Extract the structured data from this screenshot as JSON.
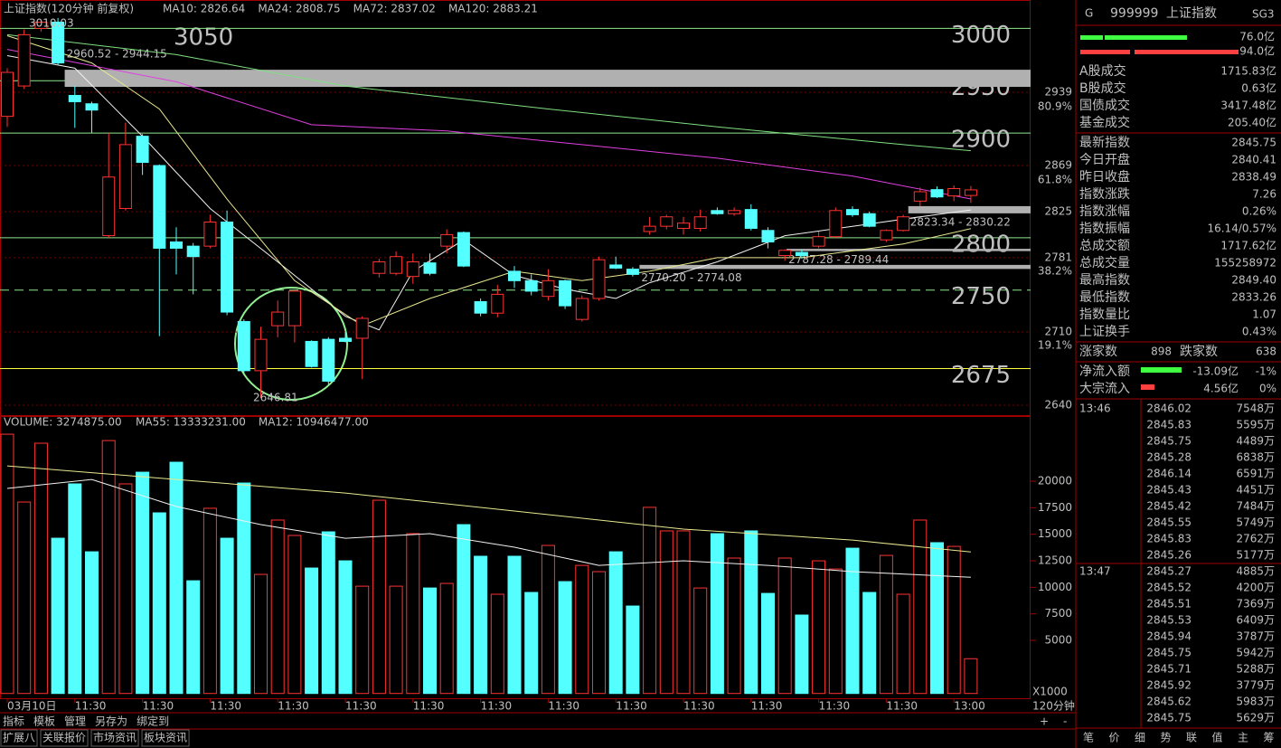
{
  "price_chart": {
    "title": "上证指数(120分钟 前复权)",
    "ylim": [
      2631.4,
      3011.6
    ],
    "yticks": [
      2640,
      2710,
      2781,
      2825,
      2869,
      2939
    ],
    "fib_labels": [
      {
        "value": 2925,
        "label": "80.9%"
      },
      {
        "value": 2855,
        "label": "61.8%"
      },
      {
        "value": 2768,
        "label": "38.2%"
      },
      {
        "value": 2697,
        "label": "19.1%"
      }
    ],
    "up_color": "#ff3232",
    "down_color": "#54ffff",
    "candles": [
      [
        2916,
        2962,
        2906,
        2958
      ],
      [
        2945,
        2999,
        2942,
        2994
      ],
      [
        3000,
        3008,
        2997,
        3006
      ],
      [
        3006,
        3010,
        2965,
        2967
      ],
      [
        2936,
        2945,
        2905,
        2930
      ],
      [
        2928,
        2930,
        2900,
        2922
      ],
      [
        2802,
        2900,
        2800,
        2858
      ],
      [
        2828,
        2910,
        2826,
        2889
      ],
      [
        2897,
        2899,
        2860,
        2872
      ],
      [
        2869,
        2870,
        2706,
        2790
      ],
      [
        2796,
        2810,
        2765,
        2790
      ],
      [
        2792,
        2795,
        2746,
        2782
      ],
      [
        2792,
        2822,
        2790,
        2815
      ],
      [
        2815,
        2826,
        2726,
        2729
      ],
      [
        2720,
        2722,
        2670,
        2673
      ],
      [
        2673,
        2715,
        2647,
        2703
      ],
      [
        2716,
        2740,
        2705,
        2729
      ],
      [
        2716,
        2750,
        2700,
        2749
      ],
      [
        2701,
        2702,
        2676,
        2677
      ],
      [
        2703,
        2705,
        2660,
        2663
      ],
      [
        2704,
        2710,
        2700,
        2701
      ],
      [
        2704,
        2725,
        2665,
        2723
      ],
      [
        2766,
        2780,
        2762,
        2777
      ],
      [
        2766,
        2787,
        2764,
        2782
      ],
      [
        2763,
        2785,
        2756,
        2777
      ],
      [
        2776,
        2785,
        2764,
        2766
      ],
      [
        2792,
        2808,
        2785,
        2803
      ],
      [
        2805,
        2806,
        2772,
        2773
      ],
      [
        2739,
        2742,
        2725,
        2728
      ],
      [
        2728,
        2755,
        2724,
        2746
      ],
      [
        2768,
        2773,
        2752,
        2759
      ],
      [
        2759,
        2765,
        2745,
        2749
      ],
      [
        2744,
        2770,
        2740,
        2759
      ],
      [
        2759,
        2760,
        2732,
        2735
      ],
      [
        2722,
        2745,
        2720,
        2742
      ],
      [
        2742,
        2782,
        2740,
        2779
      ],
      [
        2774,
        2782,
        2770,
        2771
      ],
      [
        2770,
        2772,
        2763,
        2765
      ],
      [
        2806,
        2820,
        2803,
        2811
      ],
      [
        2811,
        2822,
        2808,
        2820
      ],
      [
        2809,
        2820,
        2803,
        2814
      ],
      [
        2809,
        2827,
        2806,
        2820
      ],
      [
        2826,
        2829,
        2822,
        2823
      ],
      [
        2823,
        2829,
        2821,
        2826
      ],
      [
        2827,
        2832,
        2807,
        2809
      ],
      [
        2807,
        2810,
        2790,
        2796
      ],
      [
        2783,
        2789,
        2778,
        2788
      ],
      [
        2786,
        2789,
        2780,
        2783
      ],
      [
        2792,
        2806,
        2790,
        2801
      ],
      [
        2801,
        2829,
        2800,
        2826
      ],
      [
        2827,
        2830,
        2820,
        2822
      ],
      [
        2823,
        2825,
        2810,
        2811
      ],
      [
        2798,
        2808,
        2796,
        2807
      ],
      [
        2807,
        2822,
        2806,
        2820
      ],
      [
        2835,
        2848,
        2830,
        2844
      ],
      [
        2846,
        2849,
        2838,
        2839
      ],
      [
        2840,
        2850,
        2835,
        2847
      ],
      [
        2840.41,
        2849.4,
        2833.26,
        2845.75
      ]
    ],
    "ma": [
      {
        "label": "MA10: 2826.64",
        "color": "#f0f0f0",
        "x": [
          0,
          4,
          8,
          12,
          16,
          20,
          22,
          24,
          27,
          30,
          33,
          36,
          38,
          42,
          46,
          50,
          54,
          57
        ],
        "values": [
          2974,
          2962,
          2897,
          2828,
          2777,
          2725,
          2712,
          2768,
          2798,
          2764,
          2751,
          2742,
          2757,
          2777,
          2802,
          2811,
          2820,
          2826.64
        ]
      },
      {
        "label": "MA24: 2808.75",
        "color": "#e8e890",
        "x": [
          0,
          5,
          9,
          13,
          17,
          21,
          25,
          30,
          34,
          38,
          42,
          47,
          53,
          57
        ],
        "values": [
          2993,
          2967,
          2923,
          2837,
          2759,
          2716,
          2742,
          2768,
          2759,
          2768,
          2781,
          2781,
          2794,
          2808.75
        ]
      },
      {
        "label": "MA72: 2837.02",
        "color": "#e040e0",
        "x": [
          0,
          10,
          18,
          26,
          34,
          42,
          50,
          57
        ],
        "values": [
          2980,
          2949,
          2908,
          2902,
          2889,
          2876,
          2859,
          2837.02
        ]
      },
      {
        "label": "MA120: 2883.21",
        "color": "#80e080",
        "x": [
          0,
          10,
          20,
          32,
          42,
          53,
          57
        ],
        "values": [
          2994,
          2975,
          2945,
          2923,
          2906,
          2889,
          2883.21
        ]
      }
    ],
    "levels": [
      {
        "value": 3000,
        "label": "3000",
        "color": "#90e890"
      },
      {
        "value": 2950,
        "label": "2950",
        "color": "#90e890"
      },
      {
        "value": 2900,
        "label": "2900",
        "color": "#90e890"
      },
      {
        "value": 2800,
        "label": "2800",
        "color": "#90e890"
      },
      {
        "value": 2750,
        "label": "2750",
        "color": "#90e890"
      },
      {
        "value": 2675,
        "label": "2675",
        "color": "#ffff40"
      }
    ],
    "extra_label": "3050",
    "bands": [
      {
        "label": "2960.52 - 2944.15",
        "range": [
          2944.15,
          2960.52
        ],
        "from": 3.4
      },
      {
        "label": "2823.34 - 2830.22",
        "range": [
          2823.34,
          2830.22
        ],
        "from": 53.3
      },
      {
        "label": "2787.28 - 2789.44",
        "range": [
          2787.28,
          2789.44
        ],
        "from": 46.1
      },
      {
        "label": "2770.20 - 2774.08",
        "range": [
          2770.2,
          2774.08
        ],
        "from": 37.4
      }
    ],
    "high_label": {
      "value": 3010.03,
      "label": "3010.03"
    },
    "low_label": {
      "value": 2646.81,
      "label": "2646.81"
    }
  },
  "volume_chart": {
    "title": "VOLUME: 3274875.00",
    "ylim": [
      -450,
      26140
    ],
    "yticks": [
      5000,
      7500,
      10000,
      12500,
      15000,
      17500,
      20000
    ],
    "unit": "X1000",
    "values": [
      24430,
      18040,
      23580,
      14630,
      19750,
      13350,
      23830,
      19750,
      20850,
      17020,
      21790,
      10620,
      17450,
      14630,
      19830,
      11220,
      16340,
      14890,
      11820,
      15230,
      12500,
      10110,
      18210,
      10110,
      15060,
      9940,
      10370,
      15910,
      12930,
      9350,
      12930,
      9520,
      13950,
      10540,
      12070,
      11480,
      13350,
      8240,
      17540,
      15320,
      15320,
      9940,
      15060,
      12760,
      15320,
      9430,
      12760,
      7390,
      12500,
      11730,
      13690,
      9520,
      13010,
      9350,
      16340,
      14210,
      13860,
      3275
    ],
    "ma": [
      {
        "label": "MA55: 13333231.00",
        "color": "#e8e890",
        "x": [
          0,
          10,
          20,
          30,
          40,
          50,
          57
        ],
        "values": [
          21440,
          20170,
          18890,
          17190,
          15490,
          14460,
          13333.231
        ]
      },
      {
        "label": "MA12: 10946477.00",
        "color": "#f0f0f0",
        "x": [
          0,
          5,
          10,
          15,
          20,
          25,
          30,
          35,
          40,
          45,
          50,
          57
        ],
        "values": [
          19320,
          20170,
          17620,
          15910,
          14630,
          15060,
          13780,
          12070,
          12500,
          12070,
          11480,
          10946.477
        ]
      }
    ]
  },
  "x_axis": {
    "period": "120分钟",
    "categories": [
      "03月10日",
      null,
      null,
      null,
      "11:30",
      null,
      null,
      null,
      "11:30",
      null,
      null,
      null,
      "11:30",
      null,
      null,
      null,
      "11:30",
      null,
      null,
      null,
      "11:30",
      null,
      null,
      null,
      "11:30",
      null,
      null,
      null,
      "11:30",
      null,
      null,
      null,
      "11:30",
      null,
      null,
      null,
      "11:30",
      null,
      null,
      null,
      "11:30",
      null,
      null,
      null,
      "11:30",
      null,
      null,
      null,
      "11:30",
      null,
      null,
      null,
      "11:30",
      null,
      null,
      null,
      "13:00",
      null
    ]
  },
  "panel": {
    "code": "999999",
    "name": "上证指数",
    "tag": "SG3",
    "market": "G",
    "bars": [
      "76.0亿",
      "94.0亿"
    ],
    "rows": [
      {
        "label": "A股成交",
        "value": "1715.83亿",
        "color": "#ffffff"
      },
      {
        "label": "B股成交",
        "value": "0.63亿",
        "color": "#ffffff"
      },
      {
        "label": "国债成交",
        "value": "3417.48亿",
        "color": "#ffffff"
      },
      {
        "label": "基金成交",
        "value": "205.40亿",
        "color": "#ffffff"
      },
      {
        "label": "最新指数",
        "value": "2845.75",
        "color": "#ff4040"
      },
      {
        "label": "今日开盘",
        "value": "2840.41",
        "color": "#ff4040"
      },
      {
        "label": "昨日收盘",
        "value": "2838.49",
        "color": "#ffffff"
      },
      {
        "label": "指数涨跌",
        "value": "7.26",
        "color": "#ff4040"
      },
      {
        "label": "指数涨幅",
        "value": "0.26%",
        "color": "#ff4040"
      },
      {
        "label": "指数振幅",
        "value": "16.14/0.57%",
        "color": "#ffffff"
      },
      {
        "label": "总成交额",
        "value": "1717.62亿",
        "color": "#ffff40"
      },
      {
        "label": "总成交量",
        "value": "155258972",
        "color": "#ffff40"
      },
      {
        "label": "最高指数",
        "value": "2849.40",
        "color": "#ff4040"
      },
      {
        "label": "最低指数",
        "value": "2833.26",
        "color": "#ff4040"
      },
      {
        "label": "指数量比",
        "value": "1.07",
        "color": "#ff4040"
      },
      {
        "label": "上证换手",
        "value": "0.43%",
        "color": "#ffffff"
      }
    ],
    "breadth": {
      "up_label": "涨家数",
      "up": "898",
      "down_label": "跌家数",
      "down": "638"
    },
    "flows": [
      {
        "label": "净流入额",
        "value": "-13.09亿",
        "pct": "-1%",
        "color": "#40ff40"
      },
      {
        "label": "大宗流入",
        "value": "4.56亿",
        "pct": "0%",
        "color": "#ff4040"
      }
    ],
    "ticks": [
      {
        "time": "13:46",
        "rows": [
          [
            "2846.02",
            "7548万"
          ],
          [
            "2845.83",
            "5595万"
          ],
          [
            "2845.75",
            "4489万"
          ],
          [
            "2845.28",
            "6838万"
          ],
          [
            "2846.14",
            "6591万"
          ],
          [
            "2845.43",
            "4451万"
          ],
          [
            "2845.42",
            "7484万"
          ],
          [
            "2845.55",
            "5749万"
          ],
          [
            "2845.83",
            "2762万"
          ],
          [
            "2845.26",
            "5177万"
          ]
        ]
      },
      {
        "time": "13:47",
        "rows": [
          [
            "2845.27",
            "4885万"
          ],
          [
            "2845.52",
            "4200万"
          ],
          [
            "2845.51",
            "7369万"
          ],
          [
            "2845.53",
            "6409万"
          ],
          [
            "2845.94",
            "3787万"
          ],
          [
            "2845.75",
            "5942万"
          ],
          [
            "2845.71",
            "5288万"
          ],
          [
            "2845.92",
            "3779万"
          ],
          [
            "2845.62",
            "5983万"
          ],
          [
            "2845.75",
            "5629万"
          ]
        ]
      }
    ],
    "tabs": [
      "笔",
      "价",
      "细",
      "势",
      "联",
      "值",
      "主",
      "筹"
    ]
  },
  "toolbar": {
    "row1": [
      "指标",
      "模板",
      "管理",
      "另存为",
      "绑定到"
    ],
    "buttons": [
      "+",
      "-"
    ],
    "row2": [
      "扩展八",
      "关联报价",
      "市场资讯",
      "板块资讯"
    ]
  }
}
